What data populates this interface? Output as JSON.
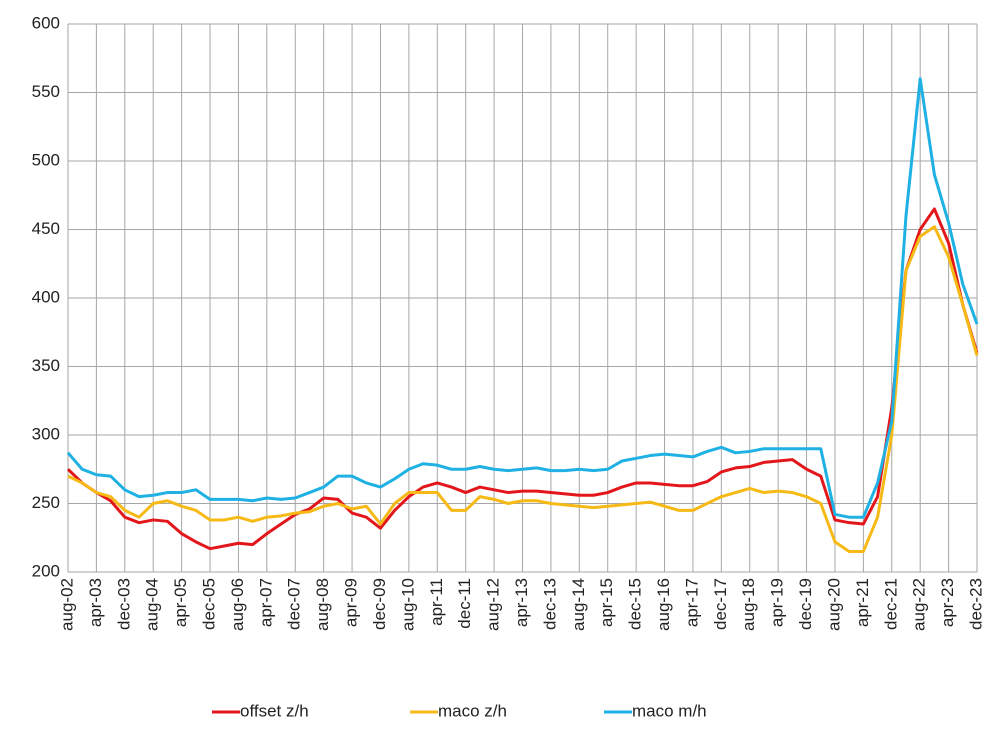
{
  "chart_data": {
    "type": "line",
    "categories": [
      "aug-02",
      null,
      "apr-03",
      null,
      "dec-03",
      null,
      "aug-04",
      null,
      "apr-05",
      null,
      "dec-05",
      null,
      "aug-06",
      null,
      "apr-07",
      null,
      "dec-07",
      null,
      "aug-08",
      null,
      "apr-09",
      null,
      "dec-09",
      null,
      "aug-10",
      null,
      "apr-11",
      null,
      "dec-11",
      null,
      "aug-12",
      null,
      "apr-13",
      null,
      "dec-13",
      null,
      "aug-14",
      null,
      "apr-15",
      null,
      "dec-15",
      null,
      "aug-16",
      null,
      "apr-17",
      null,
      "dec-17",
      null,
      "aug-18",
      null,
      "apr-19",
      null,
      "dec-19",
      null,
      "aug-20",
      null,
      "apr-21",
      null,
      "dec-21",
      null,
      "aug-22",
      null,
      "apr-23",
      null,
      "dec-23"
    ],
    "series": [
      {
        "name": "offset z/h",
        "color": "#e3171b",
        "values": [
          275,
          265,
          258,
          252,
          240,
          236,
          238,
          237,
          228,
          222,
          217,
          219,
          221,
          220,
          228,
          235,
          242,
          246,
          254,
          253,
          243,
          240,
          232,
          245,
          255,
          262,
          265,
          262,
          258,
          262,
          260,
          258,
          259,
          259,
          258,
          257,
          256,
          256,
          258,
          262,
          265,
          265,
          264,
          263,
          263,
          266,
          273,
          276,
          277,
          280,
          281,
          282,
          275,
          270,
          238,
          236,
          235,
          255,
          320,
          420,
          450,
          465,
          440,
          395,
          360
        ]
      },
      {
        "name": "maco z/h",
        "color": "#f6b915",
        "values": [
          270,
          265,
          258,
          255,
          245,
          240,
          250,
          252,
          248,
          245,
          238,
          238,
          240,
          237,
          240,
          241,
          243,
          244,
          248,
          250,
          246,
          248,
          235,
          250,
          258,
          258,
          258,
          245,
          245,
          255,
          253,
          250,
          252,
          252,
          250,
          249,
          248,
          247,
          248,
          249,
          250,
          251,
          248,
          245,
          245,
          250,
          255,
          258,
          261,
          258,
          259,
          258,
          255,
          250,
          222,
          215,
          215,
          240,
          300,
          420,
          445,
          452,
          430,
          395,
          358
        ]
      },
      {
        "name": "maco m/h",
        "color": "#1fb1e3",
        "values": [
          287,
          275,
          271,
          270,
          260,
          255,
          256,
          258,
          258,
          260,
          253,
          253,
          253,
          252,
          254,
          253,
          254,
          258,
          262,
          270,
          270,
          265,
          262,
          268,
          275,
          279,
          278,
          275,
          275,
          277,
          275,
          274,
          275,
          276,
          274,
          274,
          275,
          274,
          275,
          281,
          283,
          285,
          286,
          285,
          284,
          288,
          291,
          287,
          288,
          290,
          290,
          290,
          290,
          290,
          242,
          240,
          240,
          265,
          310,
          460,
          560,
          490,
          455,
          410,
          381
        ]
      }
    ],
    "ylim": [
      200,
      600
    ],
    "yticks": [
      200,
      250,
      300,
      350,
      400,
      450,
      500,
      550,
      600
    ],
    "grid": true,
    "legend": "bottom"
  }
}
